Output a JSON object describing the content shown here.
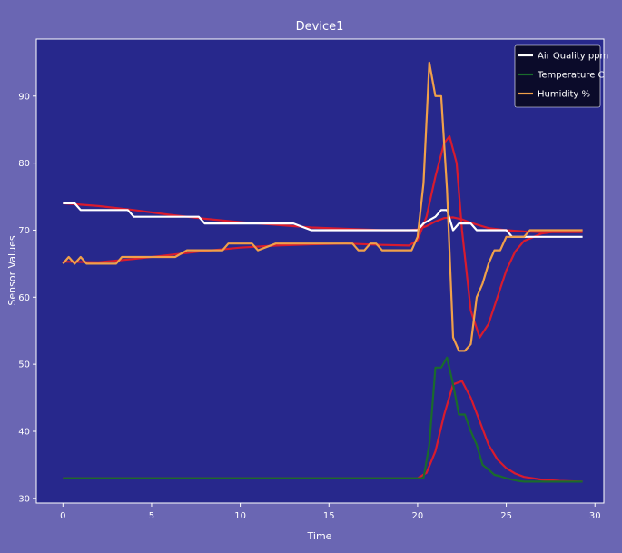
{
  "chart_data": {
    "type": "line",
    "title": "Device1",
    "xlabel": "Time",
    "ylabel": "Sensor Values",
    "xlim": [
      -1.5,
      30.5
    ],
    "ylim": [
      29.3,
      98.5
    ],
    "xticks": [
      0,
      5,
      10,
      15,
      20,
      25,
      30
    ],
    "yticks": [
      30,
      40,
      50,
      60,
      70,
      80,
      90
    ],
    "grid": false,
    "legend_position": "top-right",
    "colors": {
      "figure_background": "#6a66b3",
      "plot_background": "#27288c",
      "text": "#ffffff",
      "legend_background": "#0b0b2a",
      "smoothed_line": "#d81b2e"
    },
    "series": [
      {
        "name": "Air Quality ppm",
        "color": "#ffffff",
        "x": [
          0,
          0.66,
          1,
          2,
          3,
          3.66,
          4,
          5,
          6,
          7,
          7.66,
          8,
          9,
          10,
          11,
          12,
          13,
          14,
          15,
          16,
          17,
          18,
          19,
          20,
          20.33,
          21,
          21.33,
          21.66,
          22,
          22.33,
          22.66,
          23,
          23.33,
          24,
          25,
          25.33,
          26,
          27,
          28,
          29.3
        ],
        "y": [
          74,
          74,
          73,
          73,
          73,
          73,
          72,
          72,
          72,
          72,
          72,
          71,
          71,
          71,
          71,
          71,
          71,
          70,
          70,
          70,
          70,
          70,
          70,
          70,
          71,
          72,
          73,
          73,
          70,
          71,
          71,
          71,
          70,
          70,
          70,
          69,
          69,
          69,
          69,
          69
        ]
      },
      {
        "name": "Temperature C",
        "color": "#1a6b2c",
        "x": [
          0,
          5,
          10,
          15,
          20,
          20.33,
          20.66,
          21,
          21.33,
          21.66,
          22,
          22.33,
          22.66,
          23,
          23.33,
          23.66,
          24,
          24.33,
          24.66,
          25,
          25.33,
          25.66,
          26,
          27,
          28,
          29.3
        ],
        "y": [
          33,
          33,
          33,
          33,
          33,
          33,
          38,
          49.5,
          49.5,
          51,
          47,
          42.5,
          42.5,
          40,
          38,
          35,
          34.3,
          33.5,
          33.3,
          33,
          32.8,
          32.6,
          32.5,
          32.5,
          32.5,
          32.5
        ]
      },
      {
        "name": "Humidity %",
        "color": "#f0a04a",
        "x": [
          0,
          0.33,
          0.66,
          1,
          1.33,
          2,
          3,
          3.33,
          4,
          5,
          6,
          6.33,
          7,
          8,
          9,
          9.33,
          10,
          10.66,
          11,
          12,
          13,
          14,
          15,
          16,
          16.33,
          16.66,
          17,
          17.33,
          17.66,
          18,
          19,
          19.66,
          20,
          20.33,
          20.66,
          21,
          21.33,
          21.66,
          22,
          22.33,
          22.66,
          23,
          23.33,
          23.66,
          24,
          24.33,
          24.66,
          25,
          25.33,
          26,
          26.33,
          27,
          28,
          29.3
        ],
        "y": [
          65,
          66,
          65,
          66,
          65,
          65,
          65,
          66,
          66,
          66,
          66,
          66,
          67,
          67,
          67,
          68,
          68,
          68,
          67,
          68,
          68,
          68,
          68,
          68,
          68,
          67,
          67,
          68,
          68,
          67,
          67,
          67,
          69,
          77,
          95,
          90,
          90,
          76,
          54,
          52,
          52,
          53,
          60,
          62,
          65,
          67,
          67,
          69,
          69,
          69,
          70,
          70,
          70,
          70
        ]
      }
    ],
    "smoothed_series": [
      {
        "of": "Air Quality ppm",
        "x": [
          0,
          2,
          4,
          6,
          8,
          10,
          12,
          14,
          16,
          18,
          19.5,
          20,
          20.5,
          21,
          21.5,
          22,
          22.5,
          23,
          23.5,
          24,
          25,
          26,
          27,
          28,
          29.3
        ],
        "y": [
          74,
          73.6,
          73,
          72.3,
          71.7,
          71.2,
          70.8,
          70.4,
          70.2,
          70,
          70,
          70.1,
          70.6,
          71.3,
          71.8,
          71.9,
          71.6,
          71.1,
          70.7,
          70.3,
          70,
          69.8,
          69.7,
          69.7,
          69.7
        ]
      },
      {
        "of": "Temperature C",
        "x": [
          0,
          5,
          10,
          15,
          20,
          20.5,
          21,
          21.5,
          22,
          22.5,
          23,
          23.5,
          24,
          24.5,
          25,
          25.5,
          26,
          27,
          28,
          29.3
        ],
        "y": [
          33,
          33,
          33,
          33,
          33,
          33.8,
          37,
          42.5,
          47,
          47.5,
          45,
          41.5,
          38,
          35.8,
          34.5,
          33.7,
          33.2,
          32.8,
          32.6,
          32.5
        ]
      },
      {
        "of": "Humidity %",
        "x": [
          0,
          2,
          4,
          6,
          8,
          10,
          12,
          14,
          16,
          18,
          19.5,
          20,
          20.5,
          21,
          21.5,
          21.8,
          22.2,
          22.5,
          23,
          23.5,
          24,
          24.5,
          25,
          25.5,
          26,
          27,
          28,
          29.3
        ],
        "y": [
          65.3,
          65.2,
          65.7,
          66.3,
          66.9,
          67.4,
          67.7,
          67.9,
          68,
          67.8,
          67.7,
          68.5,
          72,
          78,
          83,
          84,
          80,
          70,
          58,
          54,
          56,
          60,
          64,
          66.8,
          68.4,
          69.5,
          69.9,
          70
        ]
      }
    ]
  }
}
